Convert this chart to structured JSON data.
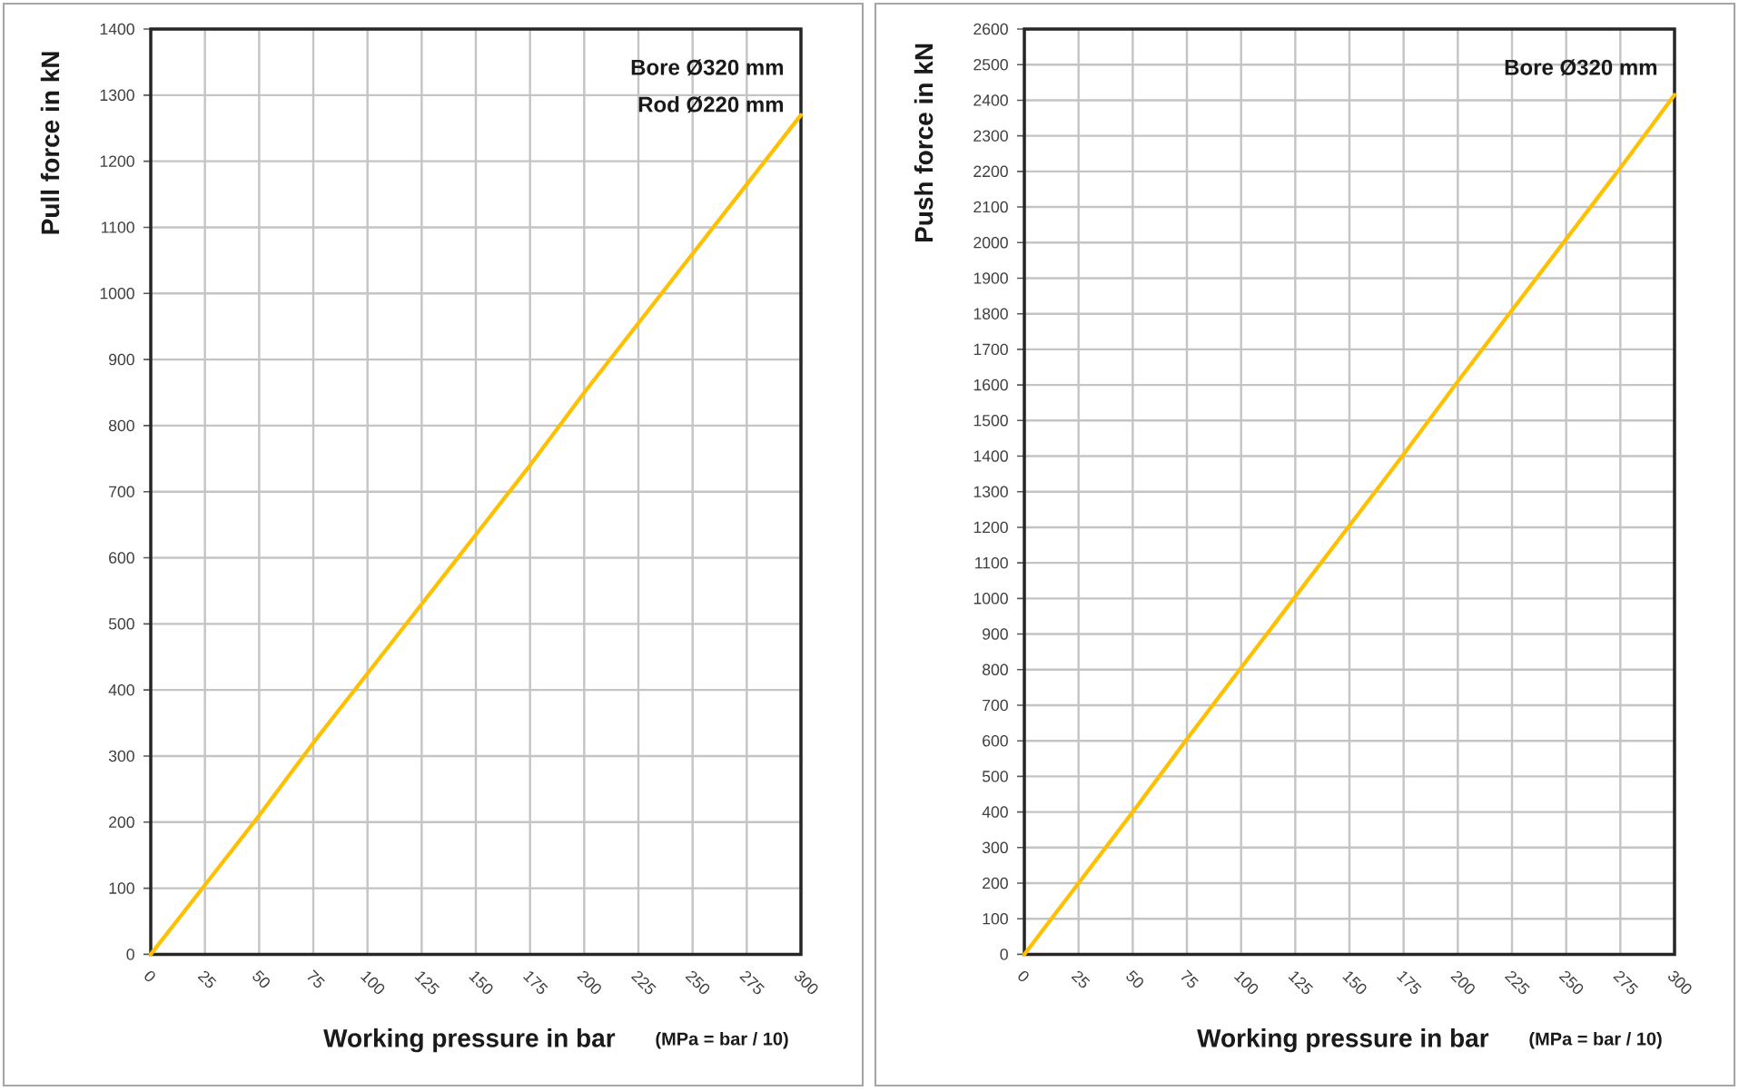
{
  "chart_data": [
    {
      "type": "line",
      "xlabel": "Working pressure in bar",
      "ylabel": "Pull force in kN",
      "annotations": [
        "Bore Ø320 mm",
        "Rod Ø220 mm",
        "(MPa = bar / 10)"
      ],
      "x": [
        0,
        25,
        50,
        75,
        100,
        125,
        150,
        175,
        200,
        225,
        250,
        275,
        300
      ],
      "values": [
        0,
        105,
        210,
        320,
        425,
        530,
        635,
        740,
        850,
        955,
        1060,
        1165,
        1270
      ],
      "color": "#ffc000",
      "xlim": [
        0,
        300
      ],
      "xticks": [
        0,
        25,
        50,
        75,
        100,
        125,
        150,
        175,
        200,
        225,
        250,
        275,
        300
      ],
      "ylim": [
        0,
        1400
      ],
      "yticks": [
        0,
        100,
        200,
        300,
        400,
        500,
        600,
        700,
        800,
        900,
        1000,
        1100,
        1200,
        1300,
        1400
      ],
      "grid": true
    },
    {
      "type": "line",
      "xlabel": "Working pressure in bar",
      "ylabel": "Push force in kN",
      "annotations": [
        "Bore Ø320 mm",
        "(MPa = bar / 10)"
      ],
      "x": [
        0,
        25,
        50,
        75,
        100,
        125,
        150,
        175,
        200,
        225,
        250,
        275,
        300
      ],
      "values": [
        0,
        200,
        400,
        605,
        805,
        1005,
        1205,
        1405,
        1610,
        1810,
        2010,
        2210,
        2415
      ],
      "color": "#ffc000",
      "xlim": [
        0,
        300
      ],
      "xticks": [
        0,
        25,
        50,
        75,
        100,
        125,
        150,
        175,
        200,
        225,
        250,
        275,
        300
      ],
      "ylim": [
        0,
        2600
      ],
      "yticks": [
        0,
        100,
        200,
        300,
        400,
        500,
        600,
        700,
        800,
        900,
        1000,
        1100,
        1200,
        1300,
        1400,
        1500,
        1600,
        1700,
        1800,
        1900,
        2000,
        2100,
        2200,
        2300,
        2400,
        2500,
        2600
      ],
      "grid": true
    }
  ]
}
